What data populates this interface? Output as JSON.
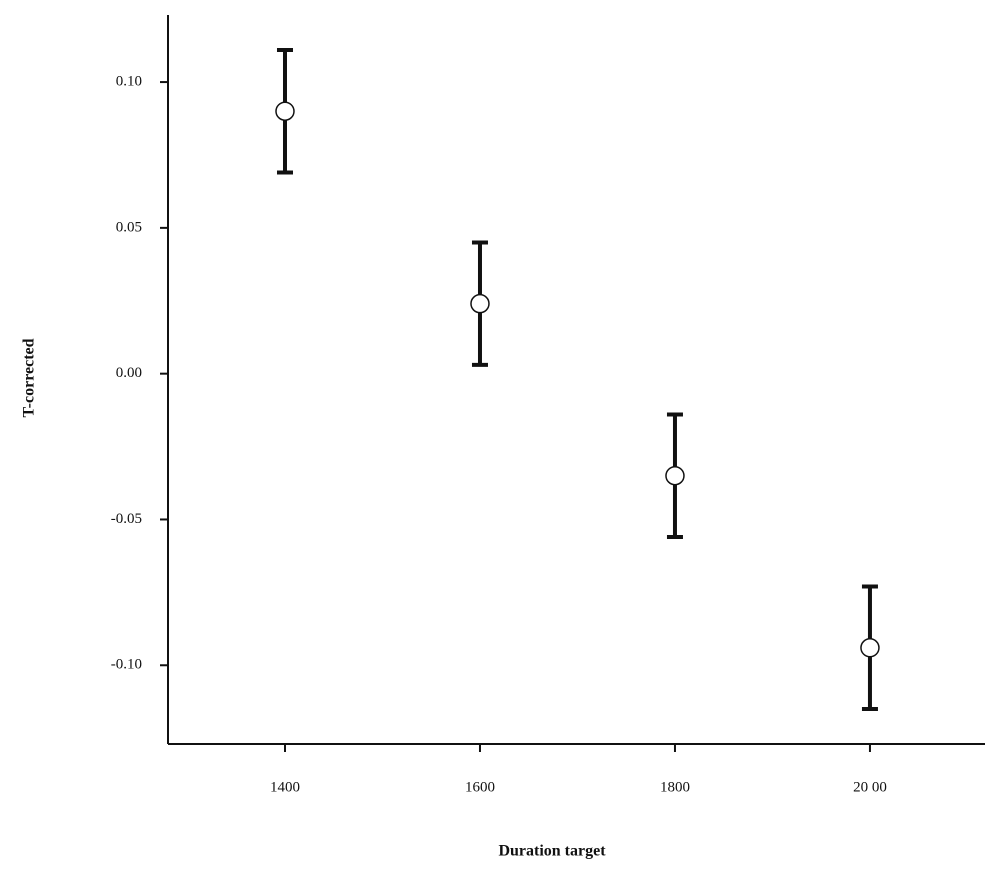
{
  "chart_data": {
    "type": "errorbar",
    "xlabel": "Duration target",
    "ylabel": "T-corrected",
    "x": [
      1400,
      1600,
      1800,
      2000
    ],
    "values": [
      0.09,
      0.024,
      -0.035,
      -0.094
    ],
    "errors": [
      0.021,
      0.021,
      0.021,
      0.021
    ],
    "color": "#111111",
    "xlim": [
      1280,
      2118
    ],
    "ylim": [
      -0.127,
      0.123
    ],
    "xticks": [
      1400,
      1600,
      1800,
      {
        "value": 2000,
        "label": "20 00"
      }
    ],
    "yticks": [
      {
        "value": 0.1,
        "label": "0.10"
      },
      {
        "value": 0.05,
        "label": "0.05"
      },
      {
        "value": 0.0,
        "label": "0.00"
      },
      {
        "value": -0.05,
        "label": "-0.05"
      },
      {
        "value": -0.1,
        "label": "-0.10"
      }
    ]
  }
}
